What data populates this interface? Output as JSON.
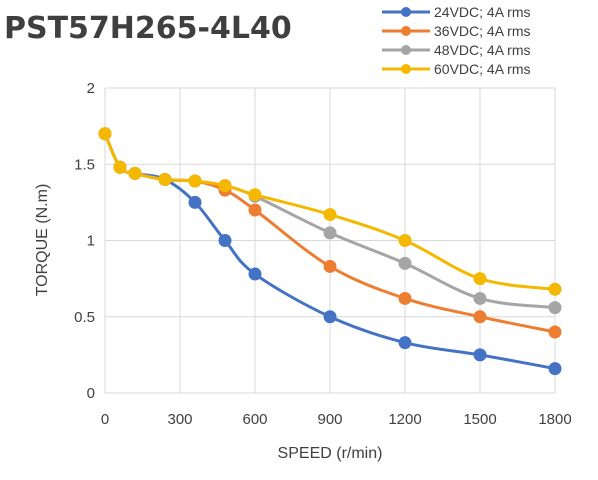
{
  "chart_data": {
    "type": "line",
    "title": "PST57H265-4L40",
    "xlabel": "SPEED (r/min)",
    "ylabel": "TORQUE (N.m)",
    "xlim": [
      0,
      1800
    ],
    "ylim": [
      0,
      2
    ],
    "xticks": [
      0,
      300,
      600,
      900,
      1200,
      1500,
      1800
    ],
    "yticks": [
      0,
      0.5,
      1,
      1.5,
      2
    ],
    "xtick_labels": [
      "0",
      "300",
      "600",
      "900",
      "1200",
      "1500",
      "1800"
    ],
    "ytick_labels": [
      "0",
      "0.5",
      "1",
      "1.5",
      "2"
    ],
    "grid": true,
    "legend_position": "top-right",
    "series": [
      {
        "name": "24VDC; 4A rms",
        "color": "#4472C4",
        "x": [
          0,
          60,
          120,
          240,
          360,
          480,
          600,
          900,
          1200,
          1500,
          1800
        ],
        "y": [
          1.7,
          1.48,
          1.44,
          1.4,
          1.25,
          1.0,
          0.78,
          0.5,
          0.33,
          0.25,
          0.16
        ]
      },
      {
        "name": "36VDC; 4A rms",
        "color": "#ED7D31",
        "x": [
          0,
          60,
          120,
          240,
          360,
          480,
          600,
          900,
          1200,
          1500,
          1800
        ],
        "y": [
          1.7,
          1.48,
          1.44,
          1.4,
          1.39,
          1.33,
          1.2,
          0.83,
          0.62,
          0.5,
          0.4
        ]
      },
      {
        "name": "48VDC; 4A rms",
        "color": "#A5A5A5",
        "x": [
          0,
          60,
          120,
          240,
          360,
          480,
          600,
          900,
          1200,
          1500,
          1800
        ],
        "y": [
          1.7,
          1.48,
          1.44,
          1.4,
          1.39,
          1.36,
          1.29,
          1.05,
          0.85,
          0.62,
          0.56
        ]
      },
      {
        "name": "60VDC; 4A rms",
        "color": "#F5B800",
        "x": [
          0,
          60,
          120,
          240,
          360,
          480,
          600,
          900,
          1200,
          1500,
          1800
        ],
        "y": [
          1.7,
          1.48,
          1.44,
          1.4,
          1.39,
          1.36,
          1.3,
          1.17,
          1.0,
          0.75,
          0.68
        ]
      }
    ]
  }
}
